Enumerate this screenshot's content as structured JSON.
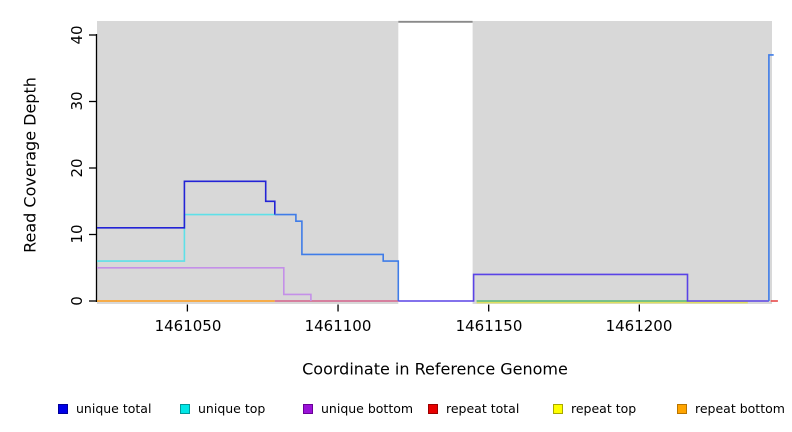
{
  "figure": {
    "panel_bg": "#d8d8d8",
    "gap_border": "#8a8a8a",
    "axis_color": "#000000"
  },
  "y_axis": {
    "title": "Read Coverage Depth",
    "ticks": [
      0,
      10,
      20,
      30,
      40
    ]
  },
  "x_axis": {
    "title": "Coordinate in Reference Genome",
    "ticks": [
      1461050,
      1461100,
      1461150,
      1461200
    ]
  },
  "legend": [
    {
      "label": "unique total",
      "fill": "#0000e8",
      "border": "#00009a"
    },
    {
      "label": "unique top",
      "fill": "#00e6e6",
      "border": "#009898"
    },
    {
      "label": "unique bottom",
      "fill": "#9a12d8",
      "border": "#6a0098"
    },
    {
      "label": "repeat total",
      "fill": "#e80000",
      "border": "#9a0000"
    },
    {
      "label": "repeat top",
      "fill": "#ffff00",
      "border": "#a8a800"
    },
    {
      "label": "repeat bottom",
      "fill": "#ffa500",
      "border": "#b87400"
    }
  ],
  "chart_data": {
    "type": "line",
    "subtype": "step-coverage",
    "title": "",
    "xlabel": "Coordinate in Reference Genome",
    "ylabel": "Read Coverage Depth",
    "x_range": [
      1461020,
      1461244
    ],
    "ylim": [
      0,
      42
    ],
    "grid": false,
    "legend_position": "bottom",
    "no_data_gap_region": [
      1461120,
      1461144
    ],
    "series": [
      {
        "name": "unique total",
        "color": "#0000e8",
        "steps_x_value": [
          [
            1461020,
            11
          ],
          [
            1461049,
            18
          ],
          [
            1461076,
            15
          ],
          [
            1461079,
            13
          ],
          [
            1461086,
            12
          ],
          [
            1461088,
            7
          ],
          [
            1461115,
            6
          ],
          [
            1461120,
            0
          ],
          [
            1461145,
            4
          ],
          [
            1461216,
            0
          ],
          [
            1461243,
            37
          ]
        ]
      },
      {
        "name": "unique top",
        "color": "#00e6e6",
        "steps_x_value": [
          [
            1461020,
            6
          ],
          [
            1461049,
            13
          ],
          [
            1461079,
            13
          ]
        ],
        "note": "coincides with unique total from 1461079 onward"
      },
      {
        "name": "unique bottom",
        "color": "#9a12d8",
        "steps_x_value": [
          [
            1461020,
            5
          ],
          [
            1461082,
            1
          ],
          [
            1461091,
            0
          ],
          [
            1461145,
            4
          ],
          [
            1461216,
            0
          ]
        ]
      },
      {
        "name": "repeat total",
        "color": "#e80000",
        "steps_x_value": [
          [
            1461079,
            0
          ],
          [
            1461120,
            0
          ]
        ]
      },
      {
        "name": "repeat top",
        "color": "#ffff00",
        "steps_x_value": [
          [
            1461145,
            0
          ],
          [
            1461236,
            0
          ]
        ]
      },
      {
        "name": "repeat bottom",
        "color": "#ffa500",
        "steps_x_value": [
          [
            1461020,
            0
          ],
          [
            1461079,
            0
          ]
        ]
      }
    ],
    "render_segments": [
      {
        "color": "#ff9e1b",
        "points": [
          [
            1461020,
            0
          ],
          [
            1461079,
            0
          ]
        ]
      },
      {
        "color": "#d5628c",
        "points": [
          [
            1461079,
            0
          ],
          [
            1461120,
            0
          ]
        ]
      },
      {
        "color": "#e0e060",
        "dy": 1.6,
        "points": [
          [
            1461146,
            0
          ],
          [
            1461236,
            0
          ]
        ]
      },
      {
        "color": "#58b878",
        "points": [
          [
            1461146,
            0
          ],
          [
            1461216,
            0
          ]
        ]
      },
      {
        "color": "#c490e8",
        "points": [
          [
            1461020,
            5
          ],
          [
            1461082,
            5
          ],
          [
            1461082,
            1
          ],
          [
            1461091,
            1
          ],
          [
            1461091,
            0
          ]
        ]
      },
      {
        "color": "#5ee0e8",
        "points": [
          [
            1461020,
            6
          ],
          [
            1461049,
            6
          ],
          [
            1461049,
            13
          ],
          [
            1461079,
            13
          ]
        ]
      },
      {
        "color": "#2323d6",
        "points": [
          [
            1461020,
            11
          ],
          [
            1461049,
            11
          ],
          [
            1461049,
            18
          ],
          [
            1461076,
            18
          ],
          [
            1461076,
            15
          ],
          [
            1461079,
            15
          ],
          [
            1461079,
            13
          ]
        ]
      },
      {
        "color": "#3f7ce8",
        "points": [
          [
            1461079,
            13
          ],
          [
            1461086,
            13
          ],
          [
            1461086,
            12
          ],
          [
            1461088,
            12
          ],
          [
            1461088,
            7
          ],
          [
            1461115,
            7
          ],
          [
            1461115,
            6
          ],
          [
            1461120,
            6
          ],
          [
            1461120,
            0
          ]
        ]
      },
      {
        "color": "#5a43e6",
        "points": [
          [
            1461120,
            0
          ],
          [
            1461145,
            0
          ],
          [
            1461145,
            4
          ],
          [
            1461216,
            4
          ],
          [
            1461216,
            0
          ],
          [
            1461243,
            0
          ]
        ]
      },
      {
        "color": "#3f7ce8",
        "points": [
          [
            1461243,
            0
          ],
          [
            1461243,
            37
          ],
          [
            1461244.6,
            37
          ]
        ]
      },
      {
        "color": "#e84848",
        "points": [
          [
            1461243.6,
            0
          ],
          [
            1461246,
            0
          ]
        ]
      }
    ]
  }
}
